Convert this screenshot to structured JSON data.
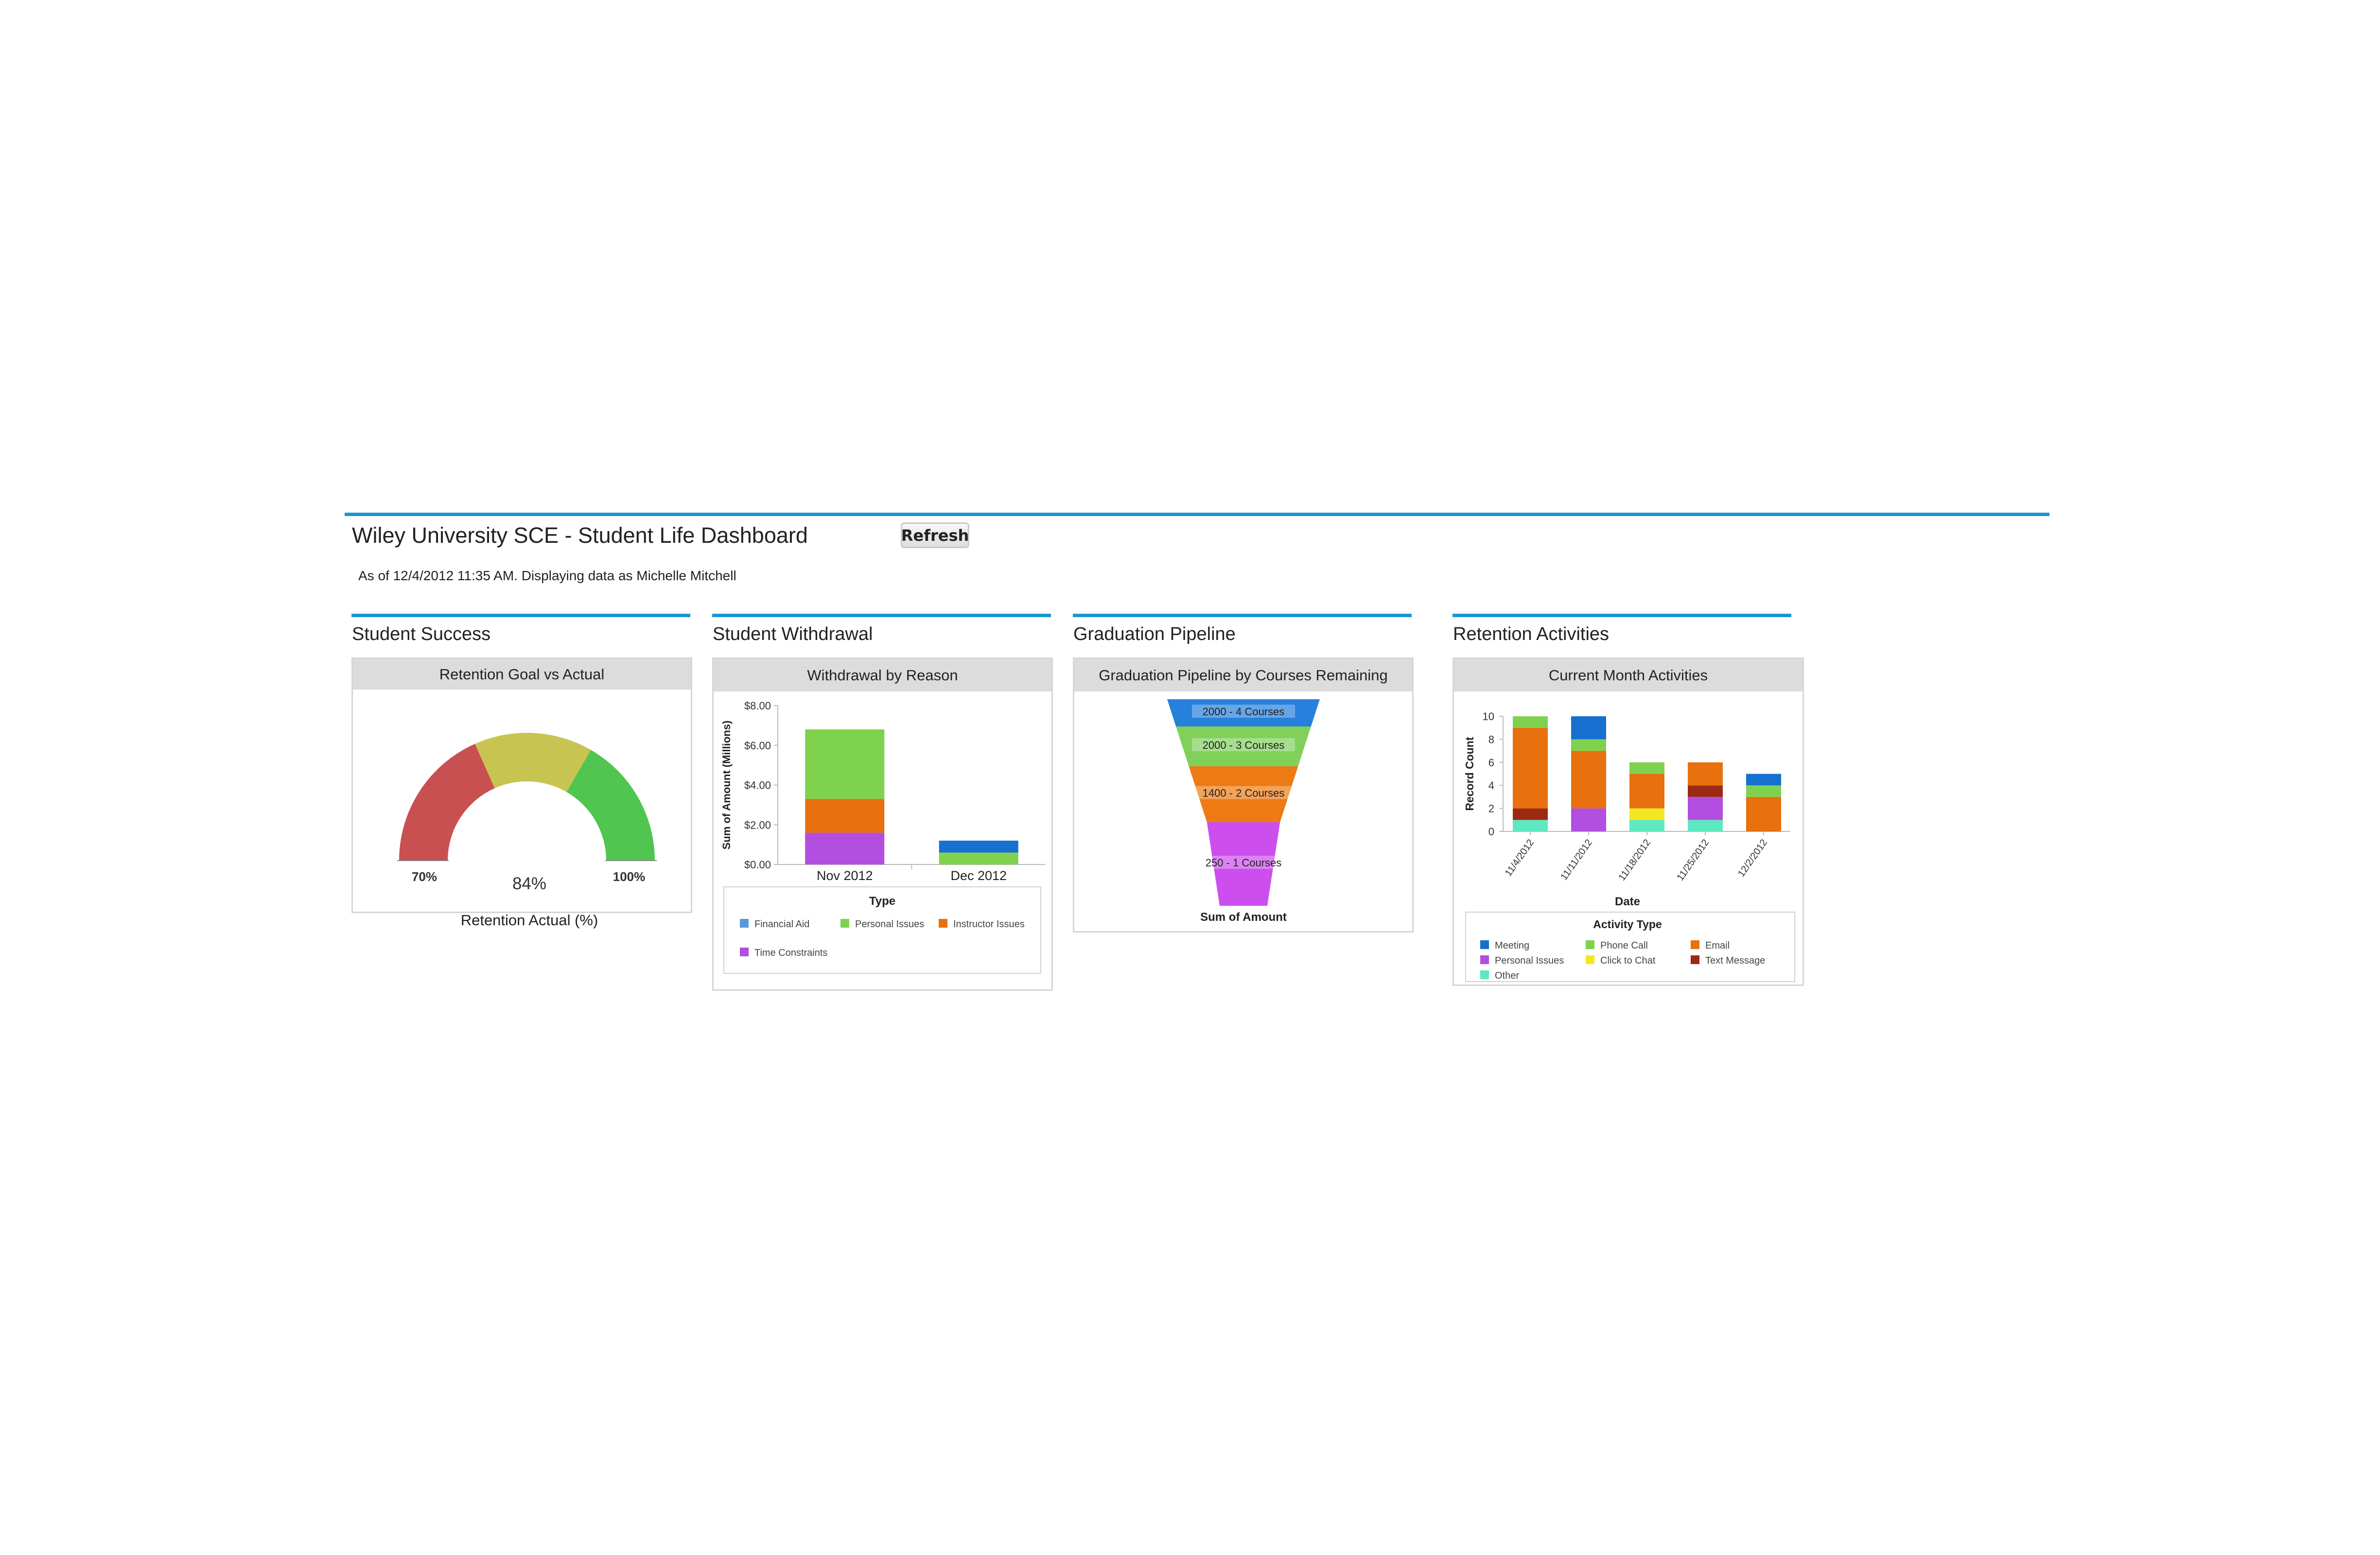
{
  "dashboard": {
    "title": "Wiley University  SCE - Student Life Dashboard",
    "refresh_label": "Refresh",
    "as_of": "As of 12/4/2012 11:35 AM. Displaying data as Michelle Mitchell",
    "accent_color": "#1a96d0"
  },
  "sections": {
    "success": {
      "title": "Student Success",
      "panel_title": "Retention Goal vs Actual",
      "gauge": {
        "min_label": "70%",
        "max_label": "100%",
        "value_label": "84%",
        "caption": "Retention Actual (%)",
        "min": 70,
        "max": 100,
        "value": 84,
        "bands": [
          {
            "from": 70,
            "to": 81,
            "color": "#c85050"
          },
          {
            "from": 81,
            "to": 90,
            "color": "#c8c452"
          },
          {
            "from": 90,
            "to": 100,
            "color": "#50c550"
          }
        ]
      }
    },
    "withdrawal": {
      "title": "Student Withdrawal",
      "panel_title": "Withdrawal by Reason"
    },
    "pipeline": {
      "title": "Graduation Pipeline",
      "panel_title": "Graduation Pipeline by Courses Remaining"
    },
    "retention": {
      "title": "Retention Activities",
      "panel_title": "Current Month Activities"
    }
  },
  "chart_data": [
    {
      "id": "withdrawal",
      "type": "bar",
      "stacked": true,
      "categories": [
        "Nov 2012",
        "Dec 2012"
      ],
      "ylabel": "Sum of Amount (Millions)",
      "ylim": [
        0,
        8
      ],
      "yticks": [
        "$0.00",
        "$2.00",
        "$4.00",
        "$6.00",
        "$8.00"
      ],
      "legend_title": "Type",
      "legend_position": "bottom",
      "series": [
        {
          "name": "Time Constraints",
          "color": "#b24ee0",
          "values": [
            1.6,
            0
          ]
        },
        {
          "name": "Instructor Issues",
          "color": "#e8700e",
          "values": [
            1.7,
            0
          ]
        },
        {
          "name": "Personal Issues",
          "color": "#7ed24e",
          "values": [
            3.5,
            0.6
          ]
        },
        {
          "name": "Financial Aid",
          "color": "#1670d0",
          "values": [
            0,
            0.6
          ]
        }
      ],
      "legend": [
        {
          "name": "Financial Aid",
          "color": "#5a9ad8"
        },
        {
          "name": "Personal Issues",
          "color": "#7ed24e"
        },
        {
          "name": "Instructor Issues",
          "color": "#e8700e"
        },
        {
          "name": "Time Constraints",
          "color": "#b24ee0"
        }
      ]
    },
    {
      "id": "pipeline",
      "type": "funnel",
      "xlabel": "Sum of Amount",
      "stages": [
        {
          "label": "2000 - 4 Courses",
          "value": 2000,
          "color": "#2680dc"
        },
        {
          "label": "2000 - 3 Courses",
          "value": 2000,
          "color": "#80d05a"
        },
        {
          "label": "1400 - 2 Courses",
          "value": 1400,
          "color": "#ee7a14"
        },
        {
          "label": "250 - 1 Courses",
          "value": 250,
          "color": "#cc4eee"
        }
      ]
    },
    {
      "id": "retention",
      "type": "bar",
      "stacked": true,
      "categories": [
        "11/4/2012",
        "11/11/2012",
        "11/18/2012",
        "11/25/2012",
        "12/2/2012"
      ],
      "xlabel": "Date",
      "ylabel": "Record Count",
      "ylim": [
        0,
        10
      ],
      "yticks": [
        "0",
        "2",
        "4",
        "6",
        "8",
        "10"
      ],
      "legend_title": "Activity Type",
      "legend_position": "bottom",
      "series": [
        {
          "name": "Other",
          "color": "#5ee8c0",
          "values": [
            1,
            0,
            1,
            1,
            0
          ]
        },
        {
          "name": "Personal Issues",
          "color": "#b24ee0",
          "values": [
            0,
            2,
            0,
            2,
            0
          ]
        },
        {
          "name": "Click to Chat",
          "color": "#f2e820",
          "values": [
            0,
            0,
            1,
            0,
            0
          ]
        },
        {
          "name": "Text Message",
          "color": "#9c2a12",
          "values": [
            1,
            0,
            0,
            1,
            0
          ]
        },
        {
          "name": "Email",
          "color": "#e8700e",
          "values": [
            7,
            5,
            3,
            2,
            3
          ]
        },
        {
          "name": "Phone Call",
          "color": "#7ed24e",
          "values": [
            1,
            1,
            1,
            0,
            1
          ]
        },
        {
          "name": "Meeting",
          "color": "#1670d0",
          "values": [
            0,
            2,
            0,
            0,
            1
          ]
        }
      ],
      "legend": [
        {
          "name": "Meeting",
          "color": "#1670d0"
        },
        {
          "name": "Phone Call",
          "color": "#7ed24e"
        },
        {
          "name": "Email",
          "color": "#e8700e"
        },
        {
          "name": "Personal Issues",
          "color": "#b24ee0"
        },
        {
          "name": "Click to Chat",
          "color": "#f2e820"
        },
        {
          "name": "Text Message",
          "color": "#9c2a12"
        },
        {
          "name": "Other",
          "color": "#5ee8c0"
        }
      ]
    }
  ]
}
